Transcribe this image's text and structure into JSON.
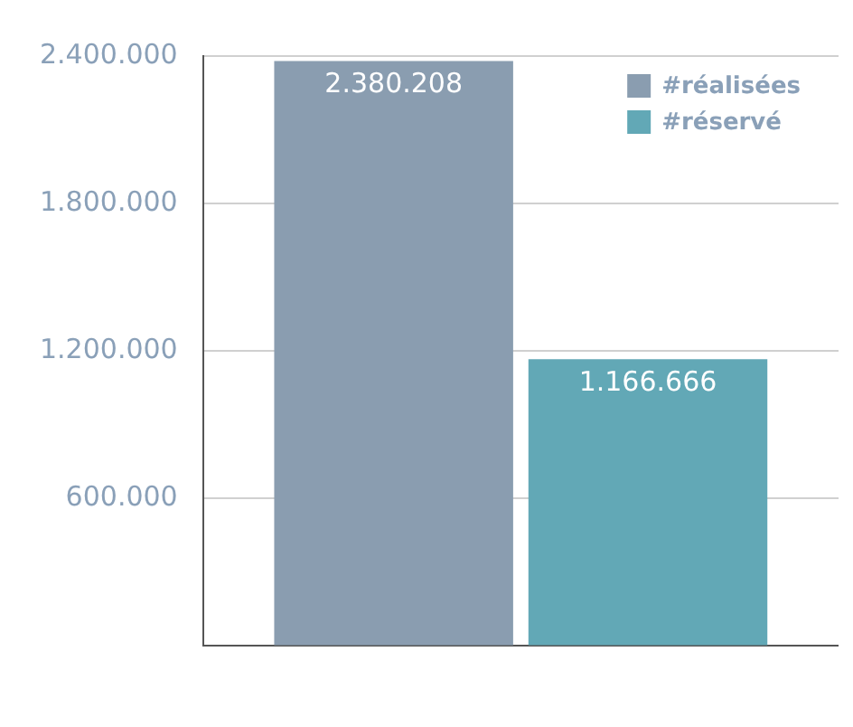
{
  "chart_data": {
    "type": "bar",
    "categories": [
      null
    ],
    "series": [
      {
        "name": "#réalisées",
        "color": "#8a9db0",
        "values": [
          2380208
        ],
        "value_labels": [
          "2.380.208"
        ]
      },
      {
        "name": "#réservé",
        "color": "#62a8b6",
        "values": [
          1166666
        ],
        "value_labels": [
          "1.166.666"
        ]
      }
    ],
    "ylim": [
      0,
      2400000
    ],
    "yticks": [
      {
        "value": 0,
        "label": null
      },
      {
        "value": 600000,
        "label": "600.000"
      },
      {
        "value": 1200000,
        "label": "1.200.000"
      },
      {
        "value": 1800000,
        "label": "1.800.000"
      },
      {
        "value": 2400000,
        "label": "2.400.000"
      }
    ],
    "grid": "y",
    "legend": "top right"
  }
}
